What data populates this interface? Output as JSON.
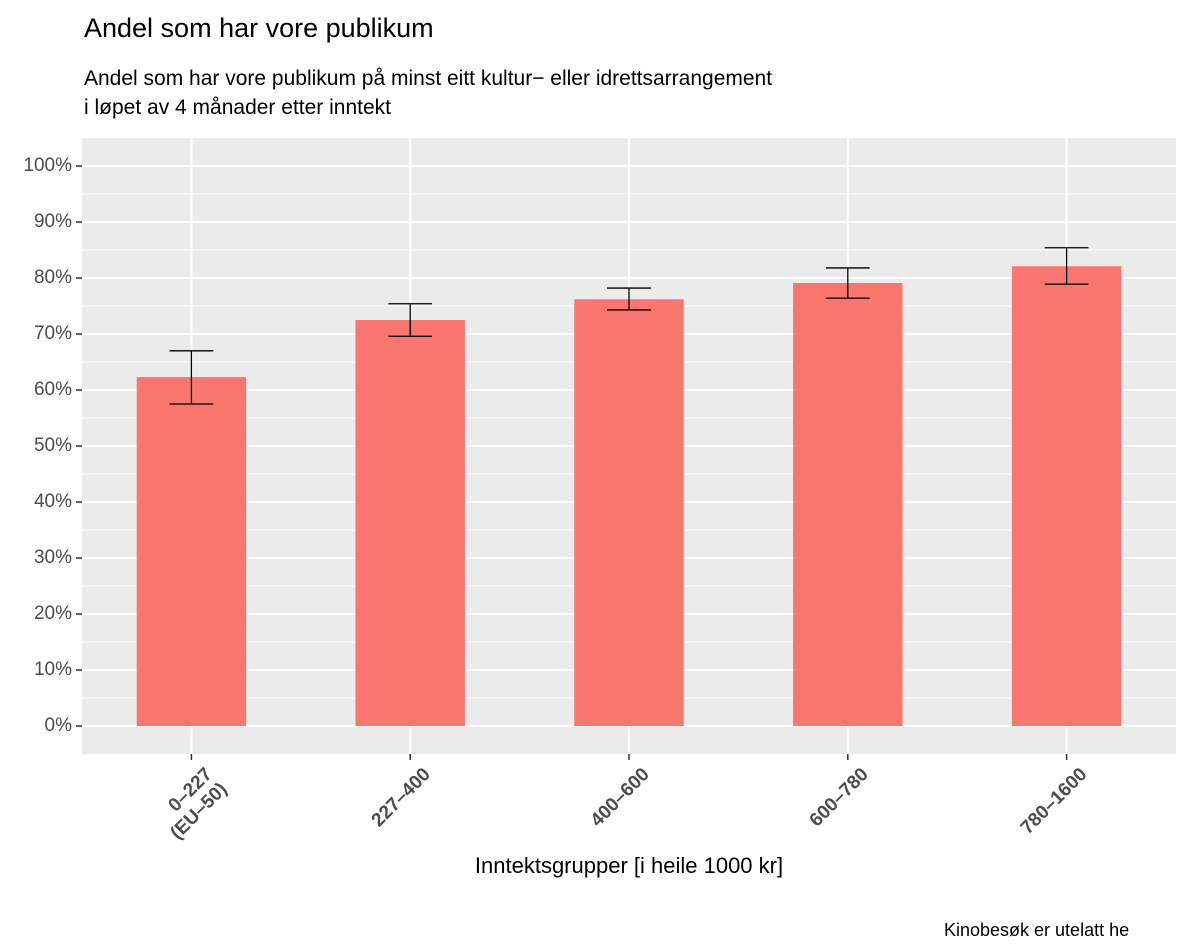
{
  "chart_data": {
    "type": "bar",
    "title": "Andel som har vore publikum",
    "subtitle": "Andel som har vore publikum på minst eitt kultur− eller idrettsarrangement\ni løpet av 4 månader etter inntekt",
    "x_label": "Inntektsgrupper [i heile 1000 kr]",
    "caption": "Kinobesøk er utelatt he",
    "categories": [
      "0–227\n(EU–50)",
      "227–400",
      "400–600",
      "600–780",
      "780–1600"
    ],
    "values": [
      62.3,
      72.5,
      76.2,
      79.1,
      82.1
    ],
    "lower": [
      57.5,
      69.6,
      74.3,
      76.4,
      78.9
    ],
    "upper": [
      67.0,
      75.4,
      78.2,
      81.8,
      85.4
    ],
    "color": "#f8766d",
    "ylim": [
      -5,
      105
    ],
    "yticks": [
      {
        "value": 0,
        "label": "0%"
      },
      {
        "value": 10,
        "label": "10%"
      },
      {
        "value": 20,
        "label": "20%"
      },
      {
        "value": 30,
        "label": "30%"
      },
      {
        "value": 40,
        "label": "40%"
      },
      {
        "value": 50,
        "label": "50%"
      },
      {
        "value": 60,
        "label": "60%"
      },
      {
        "value": 70,
        "label": "70%"
      },
      {
        "value": 80,
        "label": "80%"
      },
      {
        "value": 90,
        "label": "90%"
      },
      {
        "value": 100,
        "label": "100%"
      }
    ],
    "grid": true
  }
}
